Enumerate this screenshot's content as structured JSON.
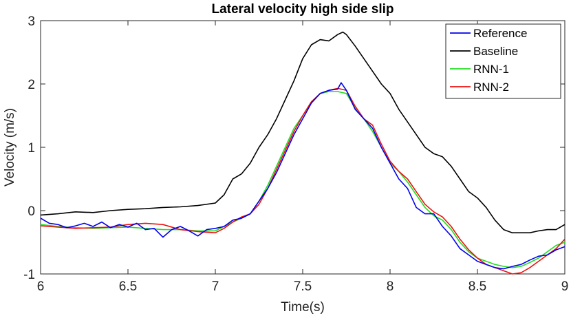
{
  "chart_data": {
    "type": "line",
    "title": "Lateral velocity high side slip",
    "xlabel": "Time(s)",
    "ylabel": "Velocity (m/s)",
    "xlim": [
      6,
      9
    ],
    "ylim": [
      -1,
      3
    ],
    "xticks": [
      6,
      6.5,
      7,
      7.5,
      8,
      8.5,
      9
    ],
    "xtick_labels": [
      "6",
      "6.5",
      "7",
      "7.5",
      "8",
      "8.5",
      "9"
    ],
    "yticks": [
      -1,
      0,
      1,
      2,
      3
    ],
    "ytick_labels": [
      "-1",
      "0",
      "1",
      "2",
      "3"
    ],
    "grid": false,
    "legend_position": "top-right",
    "series": [
      {
        "name": "Reference",
        "color": "#0000ee",
        "x": [
          6.0,
          6.05,
          6.1,
          6.15,
          6.2,
          6.25,
          6.3,
          6.35,
          6.4,
          6.45,
          6.5,
          6.55,
          6.6,
          6.65,
          6.7,
          6.75,
          6.8,
          6.85,
          6.9,
          6.95,
          7.0,
          7.05,
          7.1,
          7.15,
          7.2,
          7.25,
          7.3,
          7.35,
          7.4,
          7.45,
          7.5,
          7.55,
          7.6,
          7.65,
          7.7,
          7.72,
          7.75,
          7.8,
          7.85,
          7.9,
          7.95,
          8.0,
          8.05,
          8.1,
          8.15,
          8.2,
          8.25,
          8.3,
          8.35,
          8.4,
          8.45,
          8.5,
          8.55,
          8.6,
          8.65,
          8.7,
          8.75,
          8.8,
          8.85,
          8.9,
          8.95,
          9.0
        ],
        "y": [
          -0.12,
          -0.2,
          -0.22,
          -0.27,
          -0.24,
          -0.2,
          -0.25,
          -0.18,
          -0.27,
          -0.22,
          -0.26,
          -0.2,
          -0.3,
          -0.28,
          -0.42,
          -0.3,
          -0.25,
          -0.32,
          -0.4,
          -0.3,
          -0.28,
          -0.25,
          -0.15,
          -0.12,
          -0.05,
          0.15,
          0.35,
          0.6,
          0.9,
          1.2,
          1.45,
          1.7,
          1.85,
          1.9,
          1.92,
          2.02,
          1.9,
          1.6,
          1.45,
          1.3,
          1.0,
          0.75,
          0.5,
          0.35,
          0.05,
          -0.05,
          -0.05,
          -0.25,
          -0.4,
          -0.6,
          -0.7,
          -0.8,
          -0.85,
          -0.9,
          -0.92,
          -0.88,
          -0.85,
          -0.78,
          -0.72,
          -0.7,
          -0.62,
          -0.57
        ]
      },
      {
        "name": "Baseline",
        "color": "#000000",
        "x": [
          6.0,
          6.1,
          6.2,
          6.3,
          6.4,
          6.5,
          6.6,
          6.7,
          6.8,
          6.9,
          7.0,
          7.05,
          7.1,
          7.15,
          7.2,
          7.25,
          7.3,
          7.35,
          7.4,
          7.45,
          7.5,
          7.55,
          7.6,
          7.65,
          7.7,
          7.73,
          7.75,
          7.8,
          7.85,
          7.9,
          7.95,
          8.0,
          8.05,
          8.1,
          8.15,
          8.2,
          8.25,
          8.3,
          8.35,
          8.4,
          8.45,
          8.5,
          8.55,
          8.6,
          8.65,
          8.7,
          8.75,
          8.8,
          8.85,
          8.9,
          8.95,
          9.0
        ],
        "y": [
          -0.07,
          -0.05,
          -0.02,
          -0.03,
          0.0,
          0.02,
          0.03,
          0.05,
          0.06,
          0.08,
          0.12,
          0.25,
          0.5,
          0.58,
          0.75,
          1.0,
          1.2,
          1.45,
          1.75,
          2.05,
          2.4,
          2.62,
          2.7,
          2.68,
          2.78,
          2.82,
          2.78,
          2.6,
          2.4,
          2.2,
          2.0,
          1.85,
          1.6,
          1.4,
          1.2,
          1.0,
          0.9,
          0.85,
          0.7,
          0.5,
          0.3,
          0.2,
          0.05,
          -0.15,
          -0.3,
          -0.35,
          -0.35,
          -0.35,
          -0.32,
          -0.3,
          -0.3,
          -0.22
        ]
      },
      {
        "name": "RNN-1",
        "color": "#22dd22",
        "x": [
          6.0,
          6.1,
          6.2,
          6.3,
          6.4,
          6.5,
          6.6,
          6.7,
          6.8,
          6.9,
          7.0,
          7.05,
          7.1,
          7.15,
          7.2,
          7.25,
          7.3,
          7.35,
          7.4,
          7.45,
          7.5,
          7.55,
          7.6,
          7.65,
          7.7,
          7.75,
          7.8,
          7.85,
          7.9,
          7.95,
          8.0,
          8.05,
          8.1,
          8.15,
          8.2,
          8.25,
          8.3,
          8.35,
          8.4,
          8.45,
          8.5,
          8.55,
          8.6,
          8.65,
          8.7,
          8.75,
          8.8,
          8.85,
          8.9,
          8.95,
          9.0
        ],
        "y": [
          -0.22,
          -0.25,
          -0.27,
          -0.28,
          -0.27,
          -0.26,
          -0.28,
          -0.3,
          -0.3,
          -0.32,
          -0.32,
          -0.25,
          -0.18,
          -0.12,
          -0.05,
          0.15,
          0.4,
          0.7,
          1.0,
          1.3,
          1.5,
          1.72,
          1.85,
          1.88,
          1.88,
          1.85,
          1.62,
          1.45,
          1.25,
          1.0,
          0.75,
          0.62,
          0.45,
          0.25,
          0.05,
          -0.08,
          -0.15,
          -0.3,
          -0.5,
          -0.65,
          -0.75,
          -0.8,
          -0.85,
          -0.88,
          -0.9,
          -0.88,
          -0.82,
          -0.75,
          -0.65,
          -0.55,
          -0.5
        ]
      },
      {
        "name": "RNN-2",
        "color": "#ee1111",
        "x": [
          6.0,
          6.1,
          6.2,
          6.3,
          6.4,
          6.5,
          6.6,
          6.7,
          6.8,
          6.9,
          7.0,
          7.05,
          7.1,
          7.15,
          7.2,
          7.25,
          7.3,
          7.35,
          7.4,
          7.45,
          7.5,
          7.55,
          7.6,
          7.65,
          7.7,
          7.75,
          7.8,
          7.85,
          7.9,
          7.95,
          8.0,
          8.05,
          8.1,
          8.15,
          8.2,
          8.25,
          8.3,
          8.35,
          8.4,
          8.45,
          8.5,
          8.55,
          8.6,
          8.65,
          8.7,
          8.75,
          8.8,
          8.85,
          8.9,
          8.95,
          9.0
        ],
        "y": [
          -0.24,
          -0.26,
          -0.28,
          -0.27,
          -0.26,
          -0.22,
          -0.2,
          -0.22,
          -0.3,
          -0.33,
          -0.35,
          -0.28,
          -0.18,
          -0.1,
          -0.05,
          0.1,
          0.35,
          0.65,
          0.95,
          1.25,
          1.5,
          1.72,
          1.85,
          1.9,
          1.93,
          1.9,
          1.65,
          1.45,
          1.35,
          1.05,
          0.78,
          0.62,
          0.5,
          0.3,
          0.1,
          -0.02,
          -0.1,
          -0.25,
          -0.45,
          -0.62,
          -0.75,
          -0.85,
          -0.9,
          -0.95,
          -1.0,
          -0.98,
          -0.9,
          -0.8,
          -0.7,
          -0.6,
          -0.45
        ]
      }
    ]
  }
}
